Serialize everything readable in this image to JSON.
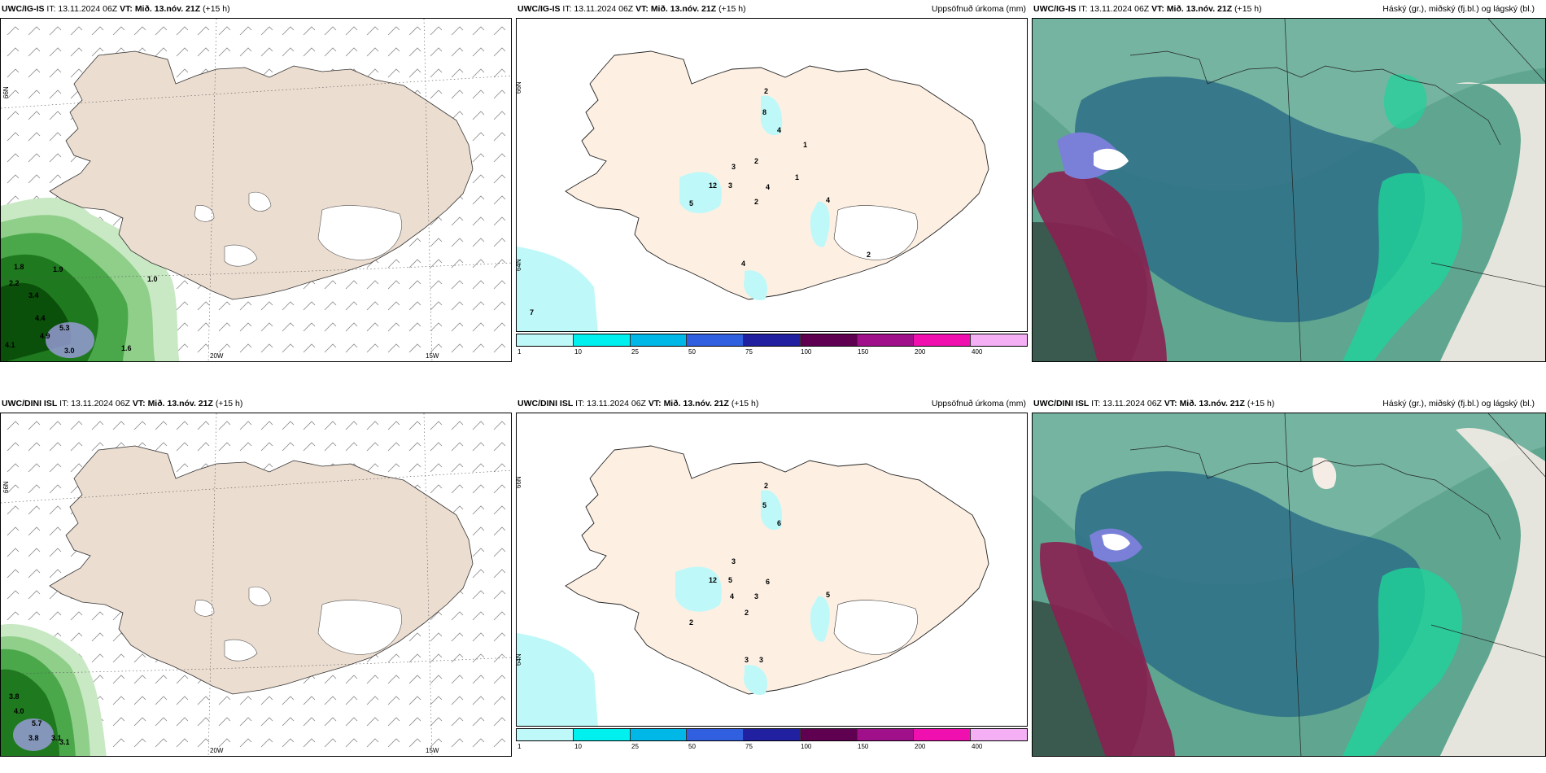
{
  "panels": {
    "p1": {
      "model": "UWC/IG-IS",
      "it": "IT: 13.11.2024 06Z",
      "vt_label": "VT:",
      "vt": "Mið. 13.nóv. 21Z",
      "lead": "(+15 h)",
      "right": ""
    },
    "p2": {
      "model": "UWC/IG-IS",
      "it": "IT: 13.11.2024 06Z",
      "vt_label": "VT:",
      "vt": "Mið. 13.nóv. 21Z",
      "lead": "(+15 h)",
      "right": "Uppsöfnuð úrkoma (mm)"
    },
    "p3": {
      "model": "UWC/IG-IS",
      "it": "IT: 13.11.2024 06Z",
      "vt_label": "VT:",
      "vt": "Mið. 13.nóv. 21Z",
      "lead": "(+15 h)",
      "right": "Háský (gr.), miðský (fj.bl.) og lágský (bl.)"
    },
    "p4": {
      "model": "UWC/DINI ISL",
      "it": "IT: 13.11.2024 06Z",
      "vt_label": "VT:",
      "vt": "Mið. 13.nóv. 21Z",
      "lead": "(+15 h)",
      "right": ""
    },
    "p5": {
      "model": "UWC/DINI ISL",
      "it": "IT: 13.11.2024 06Z",
      "vt_label": "VT:",
      "vt": "Mið. 13.nóv. 21Z",
      "lead": "(+15 h)",
      "right": "Uppsöfnuð úrkoma (mm)"
    },
    "p6": {
      "model": "UWC/DINI ISL",
      "it": "IT: 13.11.2024 06Z",
      "vt_label": "VT:",
      "vt": "Mið. 13.nóv. 21Z",
      "lead": "(+15 h)",
      "right": "Háský (gr.), miðský (fj.bl.) og lágský (bl.)"
    }
  },
  "axes": {
    "lon1": "20W",
    "lon2": "15W",
    "lat": "66N",
    "lat2": "64N"
  },
  "colorbar": {
    "labels": [
      "1",
      "10",
      "25",
      "50",
      "75",
      "100",
      "150",
      "200",
      "400"
    ],
    "colors": [
      "#bff8f8",
      "#00f0f0",
      "#00b8e8",
      "#3060e0",
      "#2020a0",
      "#600050",
      "#a0108a",
      "#f010b0",
      "#f5b0f5"
    ]
  },
  "wind_labels": {
    "top": [
      "1.8",
      "1.9",
      "2.2",
      "3.4",
      "4.4",
      "5.3",
      "4.9",
      "4.1",
      "3.0",
      "1.6",
      "1.0"
    ],
    "bottom": [
      "3.8",
      "4.0",
      "5.7",
      "3.8",
      "3.1",
      "3.1"
    ]
  },
  "precip_labels": {
    "top": [
      "2",
      "8",
      "4",
      "1",
      "2",
      "3",
      "12",
      "3",
      "4",
      "1",
      "5",
      "2",
      "4",
      "4",
      "2",
      "7"
    ],
    "bottom": [
      "2",
      "5",
      "6",
      "3",
      "12",
      "5",
      "4",
      "3",
      "6",
      "5",
      "2",
      "3",
      "3",
      "2"
    ]
  }
}
